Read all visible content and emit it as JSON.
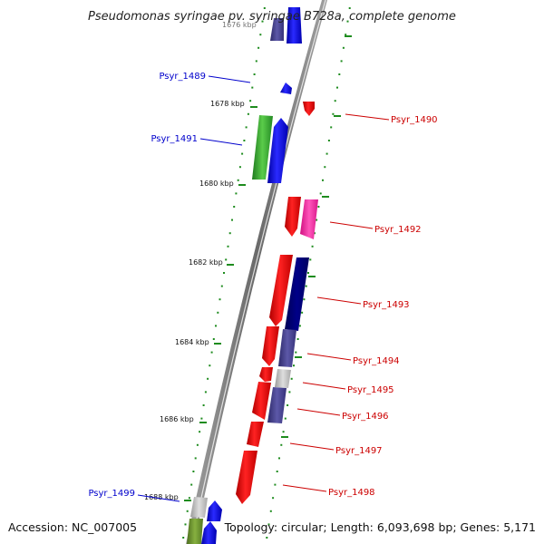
{
  "title": "Pseudomonas syringae pv. syringae B728a, complete genome",
  "accession_label": "Accession: NC_007005",
  "topology_label": "Topology: circular; Length: 6,093,698 bp; Genes: 5,171",
  "top_tick_label": "1676 kbp",
  "tick_labels": [
    "1678 kbp",
    "1680 kbp",
    "1682 kbp",
    "1684 kbp",
    "1686 kbp",
    "1688 kbp"
  ],
  "colors": {
    "backbone": "#8c8c8c",
    "dots": "#1e8c1e",
    "left_label": "#0000cc",
    "right_label": "#cc0000"
  },
  "left_labels": [
    "Psyr_1489",
    "Psyr_1491",
    "Psyr_1499"
  ],
  "right_labels": [
    "Psyr_1490",
    "Psyr_1492",
    "Psyr_1493",
    "Psyr_1494",
    "Psyr_1495",
    "Psyr_1496",
    "Psyr_1497",
    "Psyr_1498"
  ]
}
